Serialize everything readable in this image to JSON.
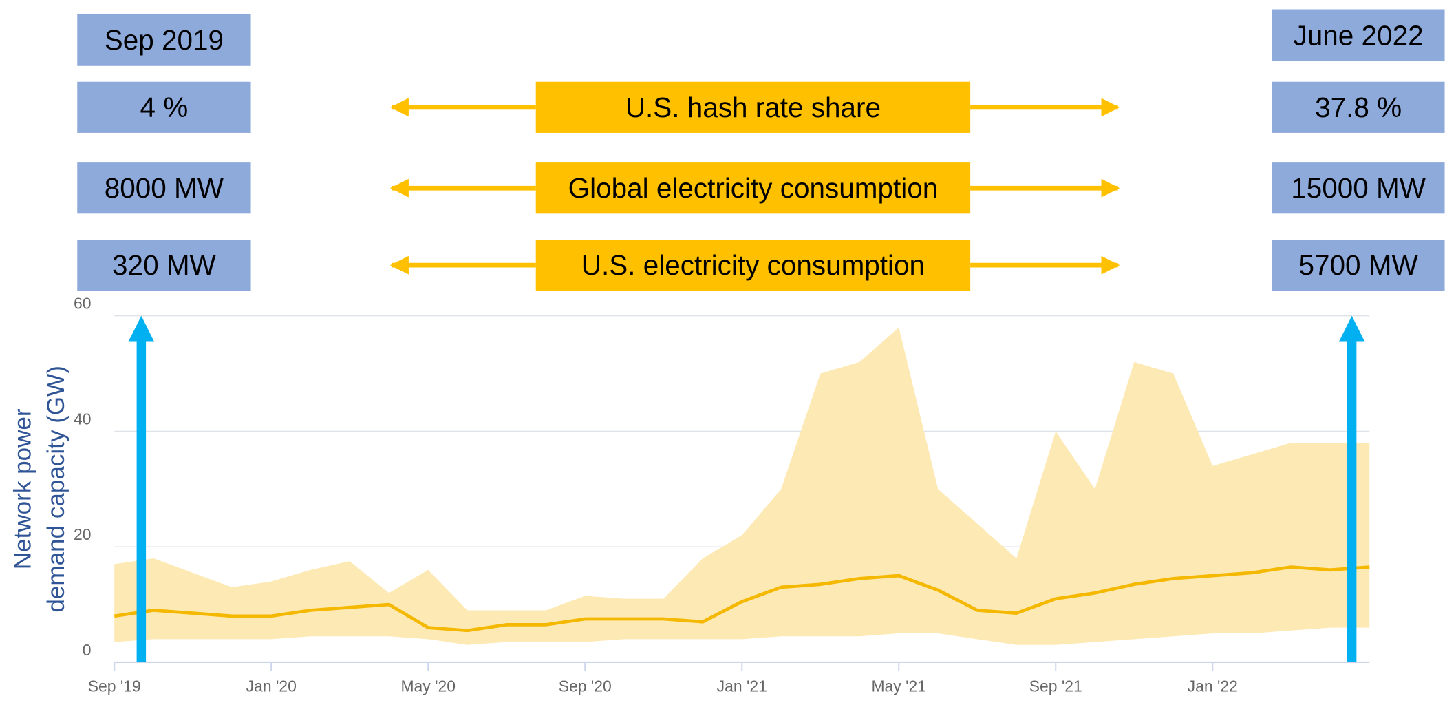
{
  "header": {
    "start_date": "Sep 2019",
    "end_date": "June 2022"
  },
  "rows": [
    {
      "label": "U.S. hash rate share",
      "start": "4 %",
      "end": "37.8 %"
    },
    {
      "label": "Global electricity consumption",
      "start": "8000 MW",
      "end": "15000 MW"
    },
    {
      "label": "U.S. electricity consumption",
      "start": "320 MW",
      "end": "5700 MW"
    }
  ],
  "chart_data": {
    "type": "line",
    "ylabel": [
      "Network power",
      "demand capacity (GW)"
    ],
    "x": [
      "2019-09",
      "2019-10",
      "2019-11",
      "2019-12",
      "2020-01",
      "2020-02",
      "2020-03",
      "2020-04",
      "2020-05",
      "2020-06",
      "2020-07",
      "2020-08",
      "2020-09",
      "2020-10",
      "2020-11",
      "2020-12",
      "2021-01",
      "2021-02",
      "2021-03",
      "2021-04",
      "2021-05",
      "2021-06",
      "2021-07",
      "2021-08",
      "2021-09",
      "2021-10",
      "2021-11",
      "2021-12",
      "2022-01",
      "2022-02",
      "2022-03",
      "2022-04",
      "2022-05"
    ],
    "values": [
      8,
      9,
      8.5,
      8,
      8,
      9,
      9.5,
      10,
      6,
      5.5,
      6.5,
      6.5,
      7.5,
      7.5,
      7.5,
      7,
      10.5,
      13,
      13.5,
      14.5,
      15,
      12.5,
      9,
      8.5,
      11,
      12,
      13.5,
      14.5,
      15,
      15.5,
      16.5,
      16,
      16.5
    ],
    "color": "#f5b800",
    "range": {
      "color": "#fde9b4",
      "upper": [
        17,
        18,
        15.5,
        13,
        14,
        16,
        17.5,
        12,
        16,
        9,
        9,
        9,
        11.5,
        11,
        11,
        18,
        22,
        30,
        50,
        52,
        58,
        30,
        24,
        18,
        40,
        30,
        52,
        50,
        34,
        36,
        38,
        38,
        38
      ],
      "lower": [
        3.5,
        4,
        4,
        4,
        4,
        4.5,
        4.5,
        4.5,
        4,
        3,
        3.5,
        3.5,
        3.5,
        4,
        4,
        4,
        4,
        4.5,
        4.5,
        4.5,
        5,
        5,
        4,
        3,
        3,
        3.5,
        4,
        4.5,
        5,
        5,
        5.5,
        6,
        6
      ]
    },
    "xlim": [
      "2019-09",
      "2022-05"
    ],
    "xticks": [
      {
        "value": "2019-09",
        "label": "Sep '19"
      },
      {
        "value": "2020-01",
        "label": "Jan '20"
      },
      {
        "value": "2020-05",
        "label": "May '20"
      },
      {
        "value": "2020-09",
        "label": "Sep '20"
      },
      {
        "value": "2021-01",
        "label": "Jan '21"
      },
      {
        "value": "2021-05",
        "label": "May '21"
      },
      {
        "value": "2021-09",
        "label": "Sep '21"
      },
      {
        "value": "2022-01",
        "label": "Jan '22"
      }
    ],
    "ylim": [
      0,
      60
    ],
    "yticks": [
      0,
      20,
      40,
      60
    ],
    "grid": true
  }
}
